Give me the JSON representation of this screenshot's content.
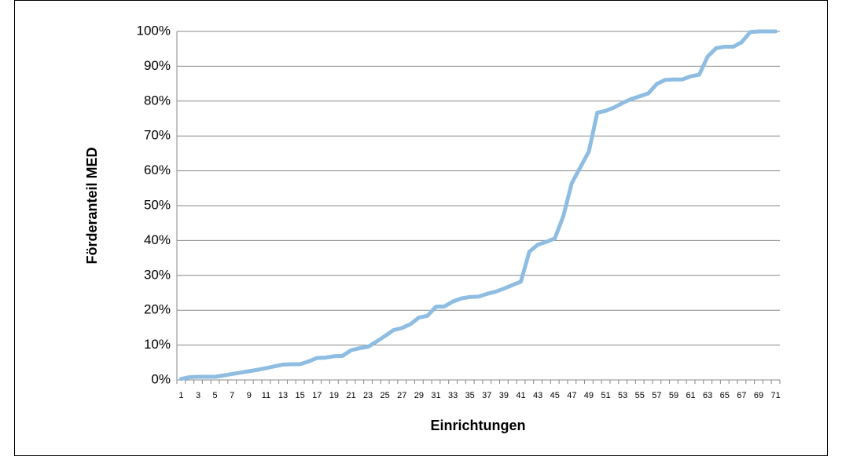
{
  "chart_data": {
    "type": "line",
    "x_label": "Einrichtungen",
    "y_label": "Förderanteil MED",
    "categories": [
      1,
      null,
      3,
      null,
      5,
      null,
      7,
      null,
      9,
      null,
      11,
      null,
      13,
      null,
      15,
      null,
      17,
      null,
      19,
      null,
      21,
      null,
      23,
      null,
      25,
      null,
      27,
      null,
      29,
      null,
      31,
      null,
      33,
      null,
      35,
      null,
      37,
      null,
      39,
      null,
      41,
      null,
      43,
      null,
      45,
      null,
      47,
      null,
      49,
      null,
      51,
      null,
      53,
      null,
      55,
      null,
      57,
      null,
      59,
      null,
      61,
      null,
      63,
      null,
      65,
      null,
      67,
      null,
      69,
      null,
      71
    ],
    "series": [
      {
        "color": "#8fbde2",
        "values": [
          0.3,
          0.8,
          0.9,
          0.9,
          0.9,
          1.3,
          1.7,
          2.1,
          2.5,
          2.9,
          3.4,
          3.9,
          4.4,
          4.5,
          4.5,
          5.3,
          6.3,
          6.4,
          6.8,
          6.9,
          8.5,
          9.1,
          9.5,
          11,
          12.6,
          14.3,
          14.9,
          16.0,
          17.9,
          18.4,
          21,
          21.1,
          22.5,
          23.4,
          23.8,
          23.9,
          24.7,
          25.3,
          26.2,
          27.2,
          28.2,
          36.8,
          38.8,
          39.6,
          40.6,
          47,
          56.5,
          61,
          65.5,
          76.7,
          77.2,
          78.2,
          79.5,
          80.6,
          81.4,
          82.2,
          84.9,
          86.1,
          86.2,
          86.2,
          87.1,
          87.6,
          92.8,
          95.2,
          95.6,
          95.6,
          96.9,
          99.8,
          100,
          100,
          100
        ]
      }
    ],
    "ylim": [
      0,
      100
    ],
    "yticks": [
      {
        "value": 0,
        "label": "0%"
      },
      {
        "value": 10,
        "label": "10%"
      },
      {
        "value": 20,
        "label": "20%"
      },
      {
        "value": 30,
        "label": "30%"
      },
      {
        "value": 40,
        "label": "40%"
      },
      {
        "value": 50,
        "label": "50%"
      },
      {
        "value": 60,
        "label": "60%"
      },
      {
        "value": 70,
        "label": "70%"
      },
      {
        "value": 80,
        "label": "80%"
      },
      {
        "value": 90,
        "label": "90%"
      },
      {
        "value": 100,
        "label": "100%"
      }
    ],
    "grid": true
  }
}
